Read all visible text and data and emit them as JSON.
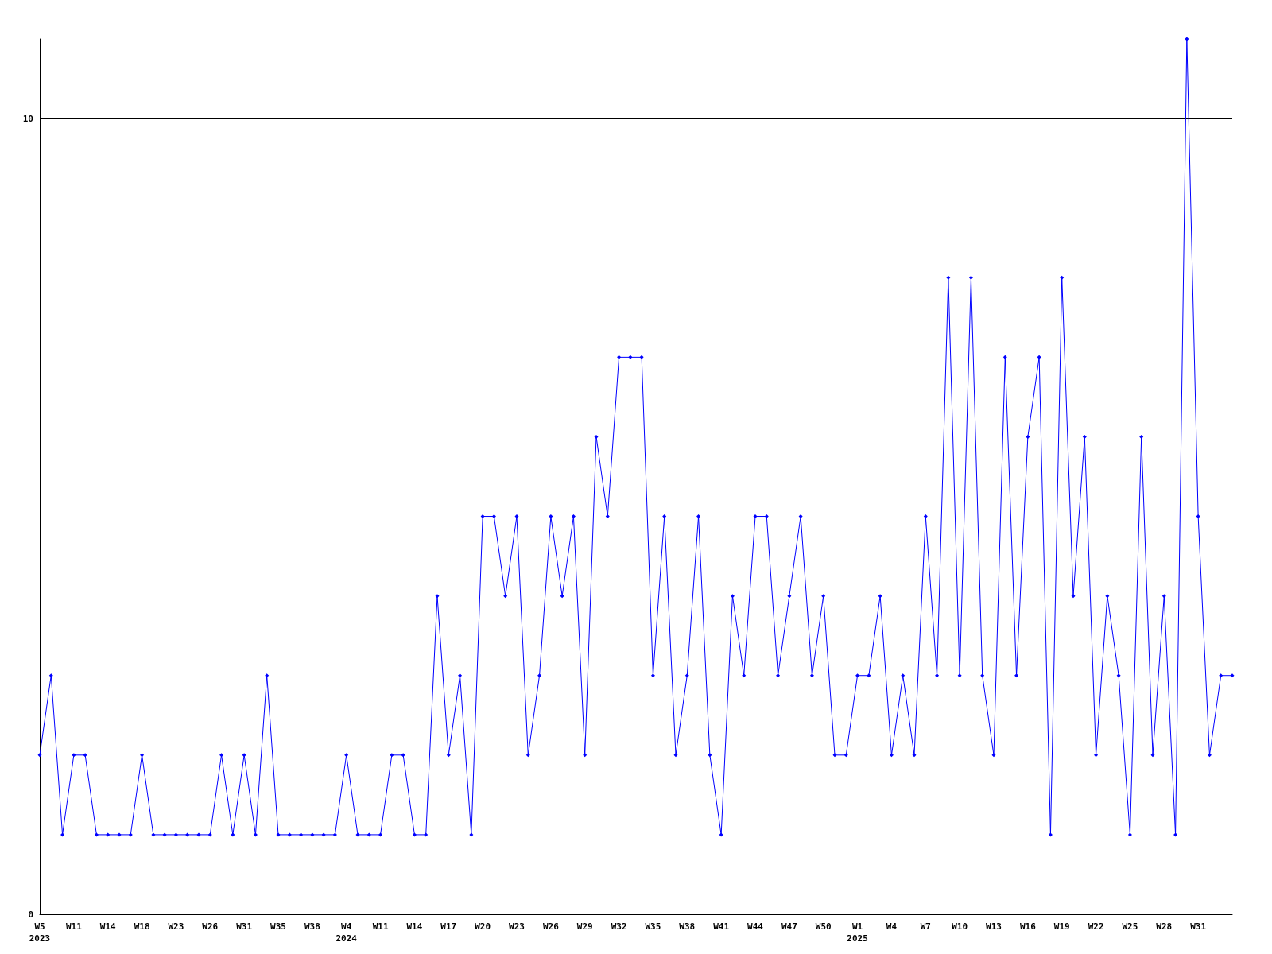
{
  "chart_data": {
    "type": "line",
    "categories": [
      "W5\n2023",
      null,
      null,
      "W11",
      null,
      null,
      "W14",
      null,
      null,
      "W18",
      null,
      null,
      "W23",
      null,
      null,
      "W26",
      null,
      null,
      "W31",
      null,
      null,
      "W35",
      null,
      null,
      "W38",
      null,
      null,
      "W4\n2024",
      null,
      null,
      "W11",
      null,
      null,
      "W14",
      null,
      null,
      "W17",
      null,
      null,
      "W20",
      null,
      null,
      "W23",
      null,
      null,
      "W26",
      null,
      null,
      "W29",
      null,
      null,
      "W32",
      null,
      null,
      "W35",
      null,
      null,
      "W38",
      null,
      null,
      "W41",
      null,
      null,
      "W44",
      null,
      null,
      "W47",
      null,
      null,
      "W50",
      null,
      null,
      "W1\n2025",
      null,
      null,
      "W4",
      null,
      null,
      "W7",
      null,
      null,
      "W10",
      null,
      null,
      "W13",
      null,
      null,
      "W16",
      null,
      null,
      "W19",
      null,
      null,
      "W22",
      null,
      null,
      "W25",
      null,
      null,
      "W28",
      null,
      null,
      "W31",
      null,
      null,
      null
    ],
    "series": [
      {
        "color": "#0000ff",
        "values": [
          2,
          3,
          1,
          2,
          2,
          1,
          1,
          1,
          1,
          2,
          1,
          1,
          1,
          1,
          1,
          1,
          2,
          1,
          2,
          1,
          3,
          1,
          1,
          1,
          1,
          1,
          1,
          2,
          1,
          1,
          1,
          2,
          2,
          1,
          1,
          4,
          2,
          3,
          1,
          5,
          5,
          4,
          5,
          2,
          3,
          5,
          4,
          5,
          2,
          6,
          5,
          7,
          7,
          7,
          3,
          5,
          2,
          3,
          5,
          2,
          1,
          4,
          3,
          5,
          5,
          3,
          4,
          5,
          3,
          4,
          2,
          2,
          3,
          3,
          4,
          2,
          3,
          2,
          5,
          3,
          8,
          3,
          8,
          3,
          2,
          7,
          3,
          6,
          7,
          1,
          8,
          4,
          6,
          2,
          4,
          3,
          1,
          6,
          2,
          4,
          1,
          11,
          5,
          2,
          3,
          3
        ]
      }
    ],
    "ylim": [
      0,
      11
    ],
    "yticks": [
      0,
      10
    ],
    "grid": "y",
    "marker": "diamond",
    "line_style": "solid"
  }
}
